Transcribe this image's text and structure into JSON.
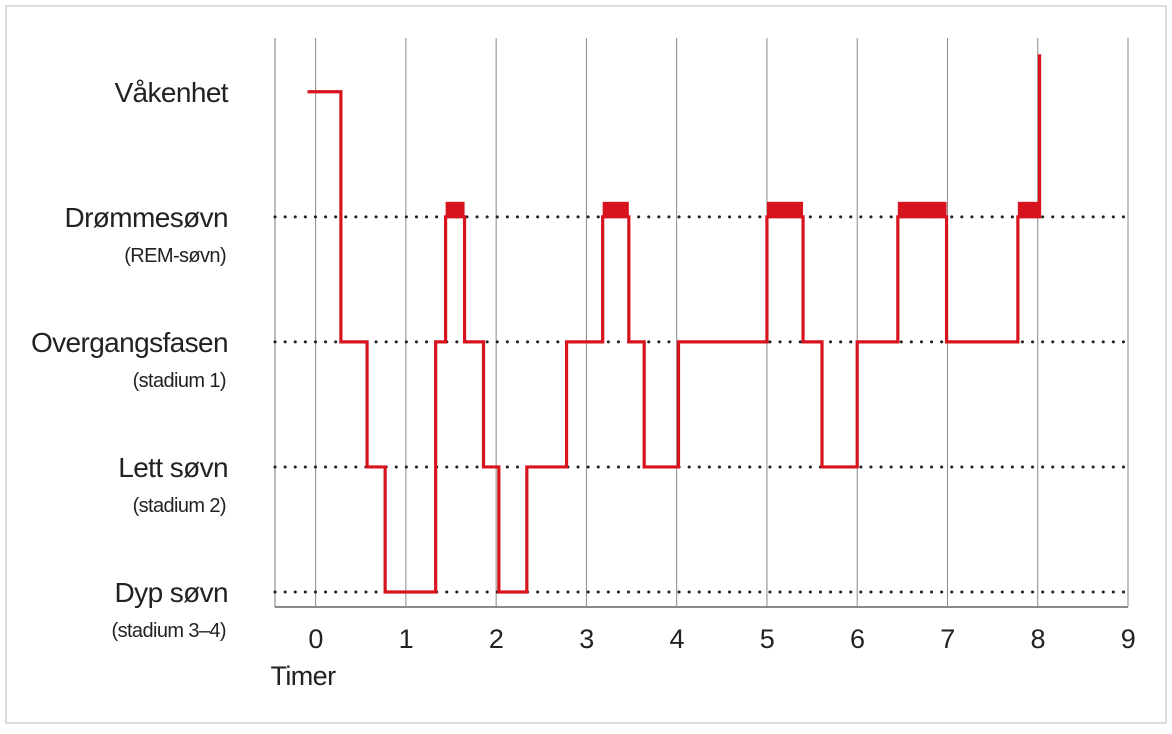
{
  "chart_data": {
    "type": "line",
    "x_label": "Timer",
    "xlim": [
      -0.45,
      9
    ],
    "xticks": [
      0,
      1,
      2,
      3,
      4,
      5,
      6,
      7,
      8,
      9
    ],
    "ylim": [
      -0.12,
      4.43
    ],
    "yticks": [
      {
        "value": 4,
        "label": "Våkenhet"
      },
      {
        "value": 3,
        "label": "Drømmesøvn",
        "sublabel": "(REM-søvn)"
      },
      {
        "value": 2,
        "label": "Overgangsfasen",
        "sublabel": "(stadium 1)"
      },
      {
        "value": 1,
        "label": "Lett søvn",
        "sublabel": "(stadium 2)"
      },
      {
        "value": 0,
        "label": "Dyp søvn",
        "sublabel": "(stadium 3–4)"
      }
    ],
    "grid": "dotted",
    "highlight_level": 3,
    "series": [
      {
        "color": "#d7141e",
        "x": [
          -0.09,
          0.28,
          0.28,
          0.57,
          0.57,
          0.77,
          0.77,
          1.33,
          1.33,
          1.44,
          1.44,
          1.65,
          1.65,
          1.86,
          1.86,
          2.03,
          2.03,
          2.34,
          2.34,
          2.78,
          2.78,
          3.18,
          3.18,
          3.47,
          3.47,
          3.64,
          3.64,
          4.02,
          4.02,
          5.0,
          5.0,
          5.4,
          5.4,
          5.61,
          5.61,
          6.0,
          6.0,
          6.45,
          6.45,
          6.99,
          6.99,
          7.78,
          7.78,
          8.02,
          8.02
        ],
        "values": [
          4,
          4,
          2,
          2,
          1,
          1,
          0,
          0,
          2,
          2,
          3,
          3,
          2,
          2,
          1,
          1,
          0,
          0,
          1,
          1,
          2,
          2,
          3,
          3,
          2,
          2,
          1,
          1,
          2,
          2,
          3,
          3,
          2,
          2,
          1,
          1,
          2,
          2,
          3,
          3,
          2,
          2,
          3,
          3,
          4.3
        ]
      }
    ]
  }
}
